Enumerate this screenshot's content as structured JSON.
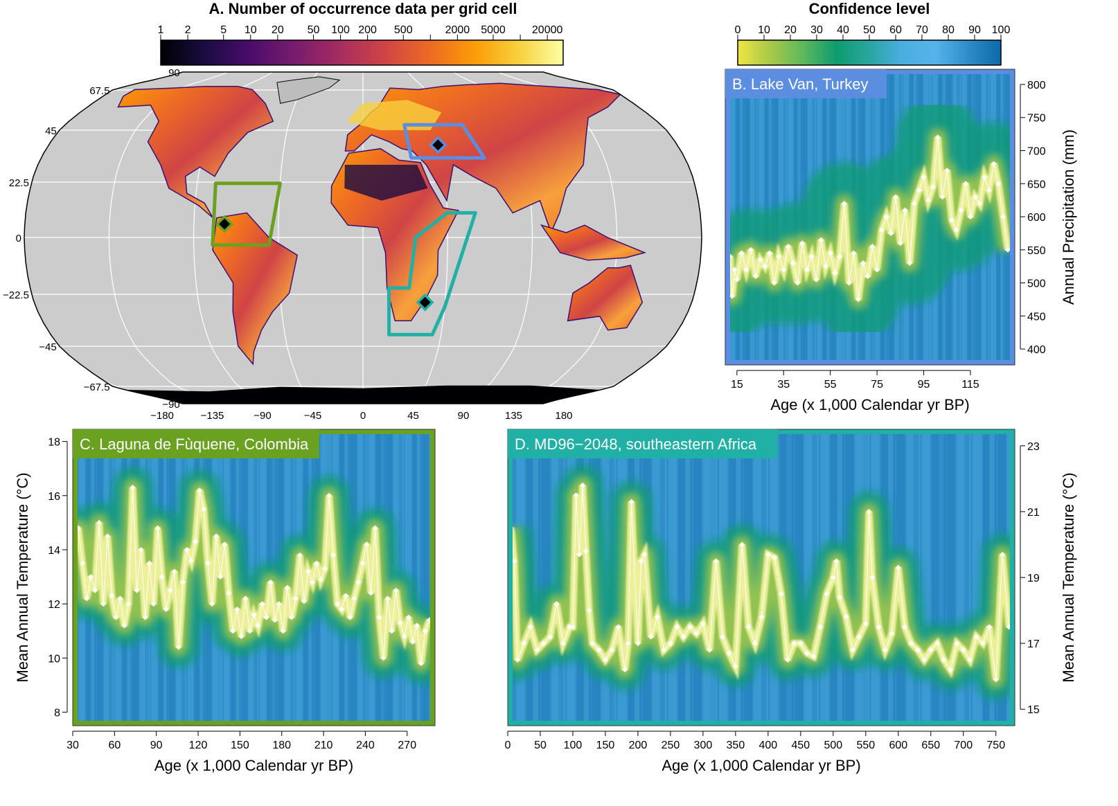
{
  "panel_a": {
    "title": "A. Number of occurrence data per grid cell",
    "colorbar": {
      "ticks": [
        1,
        2,
        5,
        10,
        20,
        50,
        100,
        200,
        500,
        1000,
        2000,
        5000,
        10000,
        20000
      ],
      "labels": [
        "1",
        "2",
        "5",
        "10",
        "20",
        "50",
        "100",
        "200",
        "500",
        "",
        "2000",
        "5000",
        "",
        "20000"
      ],
      "colors": [
        "#000004",
        "#1b0c41",
        "#4a0c6b",
        "#781c6d",
        "#a52c60",
        "#cf4446",
        "#ed6925",
        "#fb9b06",
        "#f7d13d",
        "#fcffa4"
      ]
    },
    "lat_labels": [
      "90",
      "67.5",
      "45",
      "22.5",
      "0",
      "−22.5",
      "−45",
      "−67.5",
      "−90"
    ],
    "lat_values": [
      90,
      67.5,
      45,
      22.5,
      0,
      -22.5,
      -45,
      -67.5,
      -90
    ],
    "lon_labels": [
      "−180",
      "−135",
      "−90",
      "−45",
      "0",
      "45",
      "90",
      "135",
      "180"
    ],
    "lon_values": [
      -180,
      -135,
      -90,
      -45,
      0,
      45,
      90,
      135,
      180
    ],
    "ocean_color": "#cccccc",
    "sites": [
      {
        "lon": 43,
        "lat": 38.6,
        "color": "#5b8de0"
      },
      {
        "lon": -73.7,
        "lat": 5.5,
        "color": "#6aa121"
      },
      {
        "lon": 34,
        "lat": -26,
        "color": "#21b0a5"
      }
    ]
  },
  "confidence_bar": {
    "title": "Confidence level",
    "ticks": [
      0,
      10,
      20,
      30,
      40,
      50,
      60,
      70,
      80,
      90,
      100
    ],
    "labels": [
      "0",
      "10",
      "20",
      "30",
      "40",
      "50",
      "60",
      "70",
      "80",
      "90",
      "100"
    ],
    "colors": [
      "#f0e442",
      "#a8c94a",
      "#5cb85c",
      "#0d9c6f",
      "#2aa6a0",
      "#4aaee0",
      "#56b4e9",
      "#2f8cc8",
      "#0b6aa8"
    ]
  },
  "chart_data": [
    {
      "type": "heatmap",
      "panel": "B",
      "title": "B. Lake Van, Turkey",
      "xlabel": "Age (x 1,000 Calendar yr BP)",
      "ylabel": "Annual Precipitation (mm)",
      "xlim": [
        10,
        134
      ],
      "ylim": [
        376,
        823
      ],
      "xticks": [
        15,
        35,
        55,
        75,
        95,
        115
      ],
      "yticks": [
        400,
        450,
        500,
        550,
        600,
        650,
        700,
        750,
        800
      ],
      "yaxis": "right",
      "frame_color": "#5b8de0",
      "x": [
        12,
        13,
        14,
        15,
        17,
        19,
        21,
        23,
        25,
        27,
        29,
        31,
        33,
        35,
        37,
        39,
        41,
        43,
        45,
        47,
        49,
        51,
        53,
        55,
        57,
        59,
        61,
        63,
        65,
        67,
        69,
        71,
        73,
        75,
        77,
        79,
        81,
        83,
        85,
        87,
        89,
        91,
        93,
        95,
        97,
        99,
        101,
        103,
        105,
        107,
        109,
        111,
        113,
        115,
        117,
        119,
        121,
        123,
        125,
        127,
        129,
        131
      ],
      "y": [
        540,
        480,
        520,
        505,
        545,
        520,
        550,
        510,
        535,
        525,
        545,
        500,
        540,
        520,
        555,
        530,
        500,
        560,
        520,
        540,
        505,
        565,
        525,
        545,
        515,
        540,
        620,
        500,
        545,
        475,
        530,
        510,
        555,
        520,
        580,
        600,
        575,
        630,
        560,
        610,
        530,
        620,
        640,
        660,
        625,
        645,
        720,
        630,
        670,
        595,
        580,
        610,
        650,
        600,
        630,
        620,
        660,
        640,
        680,
        650,
        600,
        550
      ]
    },
    {
      "type": "heatmap",
      "panel": "C",
      "title": "C. Laguna de Fùquene, Colombia",
      "xlabel": "Age (x 1,000 Calendar yr BP)",
      "ylabel": "Mean Annual Temperature (°C)",
      "xlim": [
        30,
        290
      ],
      "ylim": [
        7.5,
        18.45
      ],
      "xticks": [
        30,
        60,
        90,
        120,
        150,
        180,
        210,
        240,
        270
      ],
      "yticks": [
        8,
        10,
        12,
        14,
        16,
        18
      ],
      "yaxis": "left",
      "frame_color": "#6aa121",
      "x": [
        31,
        34,
        37,
        40,
        43,
        46,
        49,
        52,
        55,
        58,
        61,
        64,
        67,
        70,
        73,
        76,
        79,
        82,
        85,
        88,
        91,
        94,
        97,
        100,
        103,
        106,
        109,
        112,
        115,
        118,
        121,
        124,
        127,
        130,
        133,
        136,
        139,
        142,
        145,
        148,
        151,
        154,
        157,
        160,
        163,
        166,
        169,
        172,
        175,
        178,
        181,
        184,
        187,
        190,
        193,
        196,
        199,
        202,
        205,
        208,
        211,
        214,
        217,
        220,
        223,
        226,
        229,
        232,
        235,
        238,
        241,
        244,
        247,
        250,
        253,
        256,
        259,
        262,
        265,
        268,
        271,
        274,
        277,
        280,
        283,
        286
      ],
      "y": [
        14,
        14.8,
        13.5,
        12.2,
        13,
        12.5,
        15,
        12,
        14.5,
        12.3,
        11.5,
        12.2,
        11.2,
        12,
        16.3,
        12.5,
        14,
        11.5,
        13.5,
        12,
        14.8,
        13,
        11.8,
        12.5,
        13.2,
        10.4,
        12.8,
        14,
        13.6,
        14.3,
        16.2,
        15.5,
        13.5,
        12,
        14.5,
        13,
        14.2,
        12.4,
        11,
        11.8,
        10.8,
        12.2,
        11,
        11.6,
        11.2,
        12,
        11.5,
        12.8,
        11.4,
        12,
        11,
        12.6,
        11.5,
        12.2,
        13.8,
        12.1,
        13.2,
        12.8,
        13.5,
        12.9,
        13.3,
        16,
        13.8,
        12,
        11.8,
        12.3,
        11.5,
        12.2,
        12.8,
        13.5,
        14.2,
        12.4,
        14.8,
        11.5,
        10,
        12.2,
        11,
        12.5,
        11.3,
        10.8,
        11.5,
        10.6,
        11.2,
        9.8,
        11,
        11.4
      ]
    },
    {
      "type": "heatmap",
      "panel": "D",
      "title": "D. MD96−2048, southeastern Africa",
      "xlabel": "Age (x 1,000 Calendar yr BP)",
      "ylabel": "Mean Annual Temperature (°C)",
      "xlim": [
        0,
        779
      ],
      "ylim": [
        14.5,
        23.5
      ],
      "xticks": [
        0,
        50,
        100,
        150,
        200,
        250,
        300,
        350,
        400,
        450,
        500,
        550,
        600,
        650,
        700,
        750
      ],
      "yticks": [
        15,
        17,
        19,
        21,
        23
      ],
      "yaxis": "right",
      "frame_color": "#21b0a5",
      "x": [
        5,
        10,
        15,
        25,
        35,
        45,
        55,
        65,
        75,
        85,
        95,
        100,
        105,
        110,
        115,
        120,
        125,
        130,
        140,
        150,
        160,
        170,
        180,
        185,
        190,
        200,
        205,
        210,
        220,
        230,
        240,
        250,
        260,
        270,
        280,
        290,
        300,
        310,
        320,
        330,
        340,
        350,
        360,
        370,
        380,
        390,
        400,
        410,
        420,
        430,
        440,
        450,
        460,
        470,
        480,
        490,
        500,
        505,
        510,
        520,
        530,
        540,
        550,
        555,
        560,
        570,
        580,
        590,
        600,
        610,
        620,
        630,
        640,
        650,
        660,
        670,
        680,
        690,
        700,
        710,
        720,
        730,
        740,
        750,
        760,
        770
      ],
      "y": [
        20.5,
        19.5,
        16.5,
        17,
        17.5,
        16.8,
        17,
        17.2,
        18.2,
        17,
        17.5,
        17.5,
        21.5,
        19.7,
        21.8,
        19.8,
        18,
        17,
        16.8,
        16.5,
        16.8,
        17.5,
        16.2,
        17,
        21.3,
        17,
        19.5,
        19.7,
        17.2,
        17.8,
        16.8,
        17,
        17.5,
        17.2,
        17.5,
        17.3,
        17.6,
        16.8,
        19.5,
        17.2,
        16.7,
        16.3,
        20,
        17.5,
        17,
        17.8,
        19.7,
        19.6,
        18.5,
        16.5,
        17,
        17,
        16.7,
        16.6,
        17.5,
        18.5,
        19,
        19.5,
        18.4,
        17.8,
        16.8,
        17.2,
        17.6,
        21,
        19,
        17.5,
        16.8,
        17.3,
        19.3,
        17.5,
        17,
        16.8,
        16.5,
        16.8,
        17,
        16.5,
        16.2,
        17,
        16.8,
        16.5,
        17.2,
        17,
        17.5,
        15.9,
        19.7,
        17.5
      ]
    }
  ]
}
